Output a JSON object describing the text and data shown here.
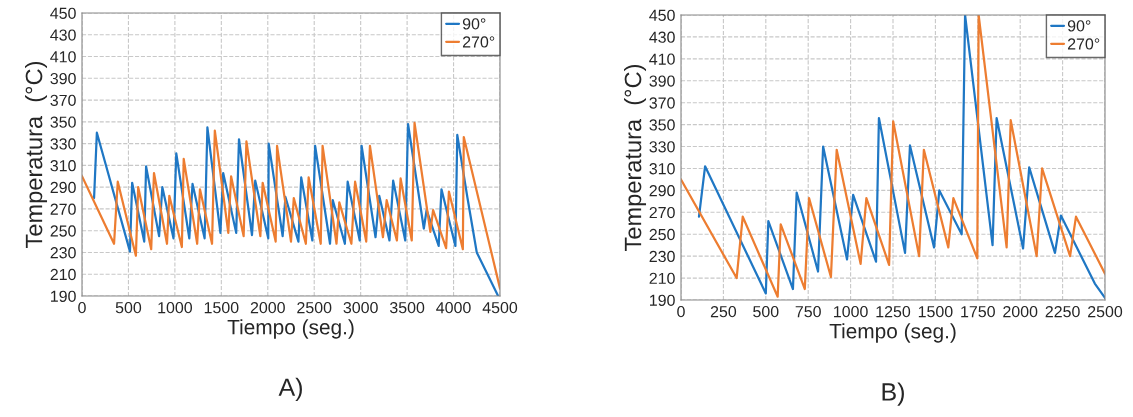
{
  "chart_data": [
    {
      "type": "line",
      "xlabel": "Tiempo (seg.)",
      "ylabel": "Temperatura  (°C)",
      "annotations": [
        "A)"
      ],
      "xlim": [
        0,
        4500
      ],
      "xticks": [
        0,
        500,
        1000,
        1500,
        2000,
        2500,
        3000,
        3500,
        4000,
        4500
      ],
      "ylim": [
        190,
        450
      ],
      "yticks": [
        190,
        210,
        230,
        250,
        270,
        290,
        310,
        330,
        350,
        370,
        390,
        410,
        430,
        450
      ],
      "grid": true,
      "legend": "top right",
      "marker": "none",
      "line_style": "solid",
      "series": [
        {
          "name": "90°",
          "color": "#1f77c4",
          "x": [
            130,
            160,
            516,
            540,
            670,
            690,
            830,
            865,
            985,
            1015,
            1155,
            1190,
            1320,
            1350,
            1490,
            1520,
            1660,
            1690,
            1830,
            1865,
            2005,
            2010,
            2160,
            2190,
            2330,
            2360,
            2480,
            2510,
            2670,
            2700,
            2830,
            2860,
            2990,
            3010,
            3160,
            3200,
            3310,
            3350,
            3480,
            3510,
            3680,
            3710,
            3840,
            3870,
            4020,
            4040,
            4150,
            4250,
            4480
          ],
          "values": [
            280,
            340,
            231,
            294,
            240,
            309,
            245,
            290,
            243,
            321,
            243,
            293,
            243,
            345,
            248,
            303,
            248,
            334,
            246,
            296,
            243,
            330,
            245,
            281,
            240,
            299,
            241,
            328,
            238,
            278,
            238,
            295,
            241,
            328,
            244,
            282,
            241,
            296,
            241,
            348,
            252,
            269,
            236,
            288,
            236,
            338,
            280,
            230,
            190
          ]
        },
        {
          "name": "270°",
          "color": "#ed7d31",
          "x": [
            0,
            345,
            385,
            580,
            605,
            745,
            775,
            915,
            940,
            1075,
            1095,
            1240,
            1270,
            1400,
            1430,
            1575,
            1605,
            1740,
            1770,
            1920,
            1945,
            2085,
            2100,
            2250,
            2280,
            2410,
            2440,
            2570,
            2590,
            2740,
            2770,
            2900,
            2940,
            3060,
            3100,
            3240,
            3280,
            3390,
            3430,
            3550,
            3580,
            3750,
            3780,
            3920,
            3950,
            4100,
            4110,
            4500
          ],
          "values": [
            300,
            238,
            295,
            227,
            290,
            233,
            303,
            238,
            282,
            235,
            316,
            238,
            288,
            238,
            342,
            248,
            300,
            245,
            332,
            245,
            294,
            240,
            328,
            240,
            280,
            238,
            299,
            238,
            328,
            238,
            276,
            238,
            295,
            240,
            328,
            244,
            278,
            241,
            298,
            241,
            349,
            249,
            269,
            234,
            286,
            233,
            336,
            197
          ]
        }
      ]
    },
    {
      "type": "line",
      "xlabel": "Tiempo (seg.)",
      "ylabel": "Temperatura  (°C)",
      "annotations": [
        "B)"
      ],
      "xlim": [
        0,
        2500
      ],
      "xticks": [
        0,
        250,
        500,
        750,
        1000,
        1250,
        1500,
        1750,
        2000,
        2250,
        2500
      ],
      "ylim": [
        190,
        450
      ],
      "yticks": [
        190,
        210,
        230,
        250,
        270,
        290,
        310,
        330,
        350,
        370,
        390,
        410,
        430,
        450
      ],
      "grid": true,
      "legend": "top right",
      "marker": "none",
      "line_style": "solid",
      "series": [
        {
          "name": "90°",
          "color": "#1f77c4",
          "x": [
            106,
            142,
            500,
            515,
            660,
            682,
            808,
            838,
            979,
            1015,
            1150,
            1167,
            1321,
            1350,
            1492,
            1523,
            1655,
            1675,
            1837,
            1861,
            2017,
            2053,
            2205,
            2240,
            2440,
            2500
          ],
          "values": [
            266,
            312,
            196,
            262,
            200,
            288,
            216,
            330,
            227,
            286,
            225,
            356,
            233,
            331,
            238,
            290,
            250,
            450,
            240,
            356,
            237,
            311,
            233,
            267,
            205,
            192
          ]
        },
        {
          "name": "270°",
          "color": "#ed7d31",
          "x": [
            0,
            328,
            364,
            570,
            588,
            730,
            755,
            884,
            918,
            1059,
            1093,
            1227,
            1251,
            1404,
            1432,
            1576,
            1606,
            1747,
            1755,
            1920,
            1944,
            2097,
            2129,
            2294,
            2329,
            2500
          ],
          "values": [
            300,
            210,
            266,
            193,
            259,
            200,
            283,
            211,
            327,
            223,
            283,
            222,
            353,
            230,
            327,
            238,
            283,
            228,
            450,
            238,
            354,
            230,
            310,
            230,
            266,
            214
          ]
        }
      ]
    }
  ]
}
